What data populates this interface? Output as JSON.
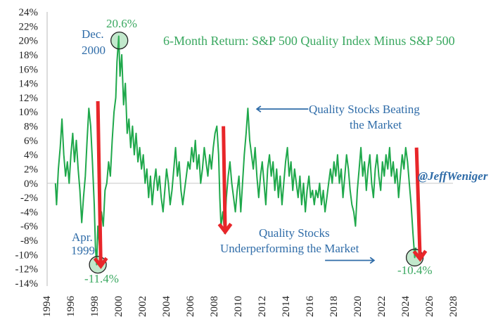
{
  "chart_data": {
    "type": "line",
    "title": "6-Month Return: S&P 500 Quality Index Minus S&P 500",
    "xlabel": "",
    "ylabel": "",
    "xlim": [
      1994,
      2028
    ],
    "ylim": [
      -14,
      24
    ],
    "grid": false,
    "y_ticks": [
      "24%",
      "22%",
      "20%",
      "18%",
      "16%",
      "14%",
      "12%",
      "10%",
      "8%",
      "6%",
      "4%",
      "2%",
      "0%",
      "-2%",
      "-4%",
      "-6%",
      "-8%",
      "-10%",
      "-12%",
      "-14%"
    ],
    "x_ticks": [
      "1994",
      "1996",
      "1998",
      "2000",
      "2002",
      "2004",
      "2006",
      "2008",
      "2010",
      "2012",
      "2014",
      "2016",
      "2018",
      "2020",
      "2022",
      "2024",
      "2026",
      "2028"
    ],
    "series_color": "#1fa84b",
    "series": [
      {
        "x": [
          1994.75,
          1994.85,
          1995.0,
          1995.15,
          1995.3,
          1995.45,
          1995.6,
          1995.75,
          1995.9,
          1996.05,
          1996.2,
          1996.35,
          1996.5,
          1996.65,
          1996.8,
          1996.95,
          1997.1,
          1997.25,
          1997.4,
          1997.55,
          1997.7,
          1997.85,
          1998.0,
          1998.1,
          1998.2,
          1998.3,
          1998.45,
          1998.6,
          1998.75,
          1998.9,
          1999.05,
          1999.2,
          1999.35,
          1999.5,
          1999.65,
          1999.8,
          1999.9,
          2000.05,
          2000.15,
          2000.3,
          2000.45,
          2000.6,
          2000.75,
          2000.9,
          2001.05,
          2001.2,
          2001.35,
          2001.5,
          2001.65,
          2001.8,
          2001.95,
          2002.1,
          2002.25,
          2002.4,
          2002.55,
          2002.7,
          2002.85,
          2003.0,
          2003.15,
          2003.3,
          2003.45,
          2003.6,
          2003.75,
          2003.9,
          2004.05,
          2004.2,
          2004.35,
          2004.5,
          2004.65,
          2004.8,
          2004.95,
          2005.1,
          2005.25,
          2005.4,
          2005.55,
          2005.7,
          2005.85,
          2006.0,
          2006.15,
          2006.3,
          2006.45,
          2006.6,
          2006.75,
          2006.9,
          2007.05,
          2007.2,
          2007.35,
          2007.5,
          2007.65,
          2007.8,
          2007.95,
          2008.1,
          2008.25,
          2008.4,
          2008.5,
          2008.6,
          2008.75,
          2008.9,
          2009.05,
          2009.2,
          2009.35,
          2009.5,
          2009.65,
          2009.8,
          2009.95,
          2010.1,
          2010.25,
          2010.4,
          2010.55,
          2010.7,
          2010.85,
          2011.0,
          2011.15,
          2011.3,
          2011.45,
          2011.6,
          2011.75,
          2011.9,
          2012.05,
          2012.2,
          2012.35,
          2012.5,
          2012.65,
          2012.8,
          2012.95,
          2013.1,
          2013.25,
          2013.4,
          2013.55,
          2013.7,
          2013.85,
          2014.0,
          2014.15,
          2014.3,
          2014.45,
          2014.6,
          2014.75,
          2014.9,
          2015.05,
          2015.2,
          2015.35,
          2015.5,
          2015.65,
          2015.8,
          2015.95,
          2016.1,
          2016.25,
          2016.4,
          2016.55,
          2016.7,
          2016.85,
          2017.0,
          2017.15,
          2017.3,
          2017.45,
          2017.6,
          2017.75,
          2017.9,
          2018.05,
          2018.2,
          2018.35,
          2018.5,
          2018.65,
          2018.8,
          2018.95,
          2019.1,
          2019.25,
          2019.4,
          2019.55,
          2019.7,
          2019.85,
          2020.0,
          2020.15,
          2020.3,
          2020.45,
          2020.6,
          2020.75,
          2020.9,
          2021.05,
          2021.2,
          2021.35,
          2021.5,
          2021.65,
          2021.8,
          2021.95,
          2022.1,
          2022.25,
          2022.4,
          2022.55,
          2022.7,
          2022.85,
          2023.0,
          2023.15,
          2023.3,
          2023.45,
          2023.6,
          2023.75,
          2023.9,
          2024.05,
          2024.2,
          2024.35,
          2024.5,
          2024.65,
          2024.8,
          2024.9
        ],
        "y": [
          0,
          -3,
          2,
          5,
          9,
          4,
          1,
          3,
          0,
          4,
          7,
          3,
          6,
          2,
          -1,
          -5.5,
          -2,
          1,
          6,
          10.5,
          8,
          3,
          -3,
          -9,
          -11.4,
          -6,
          -9,
          -4,
          -6,
          -1,
          0,
          3,
          1,
          6,
          10,
          12,
          17,
          20.6,
          15,
          18,
          11,
          14,
          7,
          9,
          5,
          8,
          4,
          7,
          3,
          5,
          2,
          4,
          0,
          2,
          -2,
          1,
          -3,
          0,
          2,
          -1,
          1,
          -2,
          -4,
          -1,
          2,
          0,
          -3,
          -1,
          2,
          5,
          1,
          3,
          -1,
          -3,
          -1,
          1,
          3,
          2,
          5,
          3,
          6,
          2,
          4,
          0,
          2,
          5,
          3,
          1,
          4,
          2,
          5,
          7,
          8,
          4,
          -2,
          -6,
          -4,
          -7,
          -2,
          1,
          3,
          0,
          -2,
          -4,
          -1,
          1,
          -4,
          0,
          4,
          7,
          10.5,
          6,
          4,
          2,
          5,
          1,
          -2,
          1,
          3,
          0,
          -3,
          2,
          4,
          1,
          3,
          -1,
          2,
          -2,
          1,
          -3,
          0,
          3,
          5,
          1,
          3,
          -1,
          2,
          0,
          -2,
          1,
          -3,
          0,
          -4,
          -1,
          1,
          -2,
          -1,
          -3,
          -1,
          -2,
          0,
          -3,
          -1,
          -4,
          -2,
          0,
          2,
          0,
          3,
          1,
          4,
          0,
          2,
          -2,
          1,
          4,
          2,
          -1,
          -3,
          -4,
          -6,
          -1,
          2,
          5,
          1,
          3,
          -1,
          2,
          4,
          0,
          -2,
          2,
          4,
          1,
          -1,
          3,
          1,
          4,
          2,
          5,
          1,
          3,
          0,
          2,
          -2,
          1,
          4,
          2,
          5,
          3,
          0,
          -3,
          -7,
          -10.4,
          -9
        ]
      }
    ],
    "annotations": {
      "title": "6-Month Return: S&P 500 Quality Index Minus S&P 500",
      "peak_date_line1": "Dec.",
      "peak_date_line2": "2000",
      "peak_value": "20.6%",
      "trough1_date_line1": "Apr.",
      "trough1_date_line2": "1999",
      "trough1_value": "-11.4%",
      "trough2_value": "-10.4%",
      "beating_line1": "Quality Stocks Beating",
      "beating_line2": "the Market",
      "under_line1": "Quality Stocks",
      "under_line2": "Underperforming the Market",
      "watermark": "@JeffWeniger"
    },
    "colors": {
      "line": "#1fa84b",
      "arrow_red": "#e8262a",
      "arrow_blue": "#2f6ca8",
      "text_blue": "#2f6ca8",
      "text_green": "#3aa860"
    }
  }
}
